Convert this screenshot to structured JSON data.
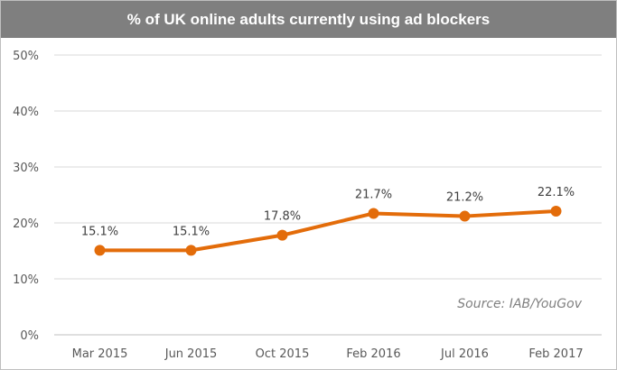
{
  "chart_data": {
    "type": "line",
    "title": "% of UK online adults currently using ad blockers",
    "categories": [
      "Mar 2015",
      "Jun 2015",
      "Oct 2015",
      "Feb 2016",
      "Jul 2016",
      "Feb 2017"
    ],
    "values": [
      15.1,
      15.1,
      17.8,
      21.7,
      21.2,
      22.1
    ],
    "data_labels": [
      "15.1%",
      "15.1%",
      "17.8%",
      "21.7%",
      "21.2%",
      "22.1%"
    ],
    "y_ticks": [
      "0%",
      "10%",
      "20%",
      "30%",
      "40%",
      "50%"
    ],
    "ylim": [
      0,
      50
    ],
    "grid": true,
    "legend": "none",
    "line_color": "#e36c0a",
    "title_bg_color": "#7f7f7f",
    "source_note": "Source: IAB/YouGov"
  }
}
